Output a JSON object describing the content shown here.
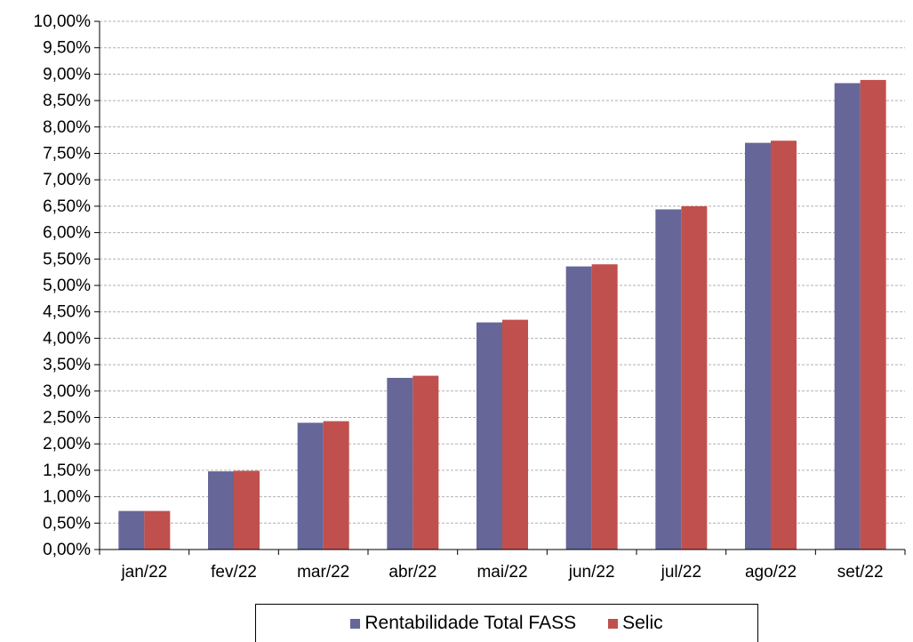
{
  "chart_data": {
    "type": "bar",
    "categories": [
      "jan/22",
      "fev/22",
      "mar/22",
      "abr/22",
      "mai/22",
      "jun/22",
      "jul/22",
      "ago/22",
      "set/22"
    ],
    "series": [
      {
        "name": "Rentabilidade Total FASS",
        "color": "#666699",
        "values": [
          0.73,
          1.48,
          2.4,
          3.25,
          4.3,
          5.36,
          6.44,
          7.7,
          8.83
        ]
      },
      {
        "name": "Selic",
        "color": "#C0504D",
        "values": [
          0.73,
          1.49,
          2.43,
          3.29,
          4.35,
          5.4,
          6.5,
          7.74,
          8.89
        ]
      }
    ],
    "ylim": [
      0,
      10
    ],
    "ytick_step": 0.5,
    "ytick_labels": [
      "0,00%",
      "0,50%",
      "1,00%",
      "1,50%",
      "2,00%",
      "2,50%",
      "3,00%",
      "3,50%",
      "4,00%",
      "4,50%",
      "5,00%",
      "5,50%",
      "6,00%",
      "6,50%",
      "7,00%",
      "7,50%",
      "8,00%",
      "8,50%",
      "9,00%",
      "9,50%",
      "10,00%"
    ],
    "grid": true,
    "legend": "bottom",
    "title": "",
    "xlabel": "",
    "ylabel": ""
  }
}
